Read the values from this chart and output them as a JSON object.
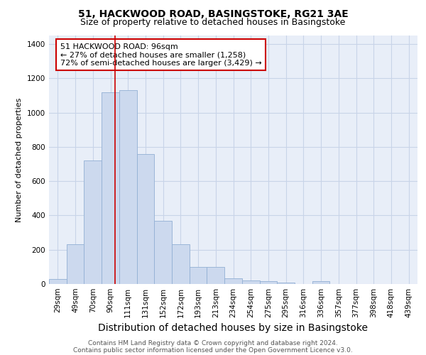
{
  "title": "51, HACKWOOD ROAD, BASINGSTOKE, RG21 3AE",
  "subtitle": "Size of property relative to detached houses in Basingstoke",
  "xlabel": "Distribution of detached houses by size in Basingstoke",
  "ylabel": "Number of detached properties",
  "categories": [
    "29sqm",
    "49sqm",
    "70sqm",
    "90sqm",
    "111sqm",
    "131sqm",
    "152sqm",
    "172sqm",
    "193sqm",
    "213sqm",
    "234sqm",
    "254sqm",
    "275sqm",
    "295sqm",
    "316sqm",
    "336sqm",
    "357sqm",
    "377sqm",
    "398sqm",
    "418sqm",
    "439sqm"
  ],
  "values": [
    30,
    232,
    720,
    1120,
    1130,
    760,
    370,
    232,
    100,
    100,
    32,
    20,
    15,
    10,
    0,
    15,
    0,
    0,
    0,
    0,
    0
  ],
  "bar_color": "#ccd9ee",
  "bar_edge_color": "#92afd4",
  "property_line_x": 3.28,
  "property_line_color": "#cc0000",
  "annotation_text": "51 HACKWOOD ROAD: 96sqm\n← 27% of detached houses are smaller (1,258)\n72% of semi-detached houses are larger (3,429) →",
  "annotation_box_color": "#cc0000",
  "ylim": [
    0,
    1450
  ],
  "yticks": [
    0,
    200,
    400,
    600,
    800,
    1000,
    1200,
    1400
  ],
  "footer1": "Contains HM Land Registry data © Crown copyright and database right 2024.",
  "footer2": "Contains public sector information licensed under the Open Government Licence v3.0.",
  "background_color": "#e8eef8",
  "grid_color": "#c8d4e8",
  "title_fontsize": 10,
  "subtitle_fontsize": 9,
  "xlabel_fontsize": 10,
  "ylabel_fontsize": 8,
  "tick_fontsize": 7.5,
  "annotation_fontsize": 8,
  "footer_fontsize": 6.5
}
